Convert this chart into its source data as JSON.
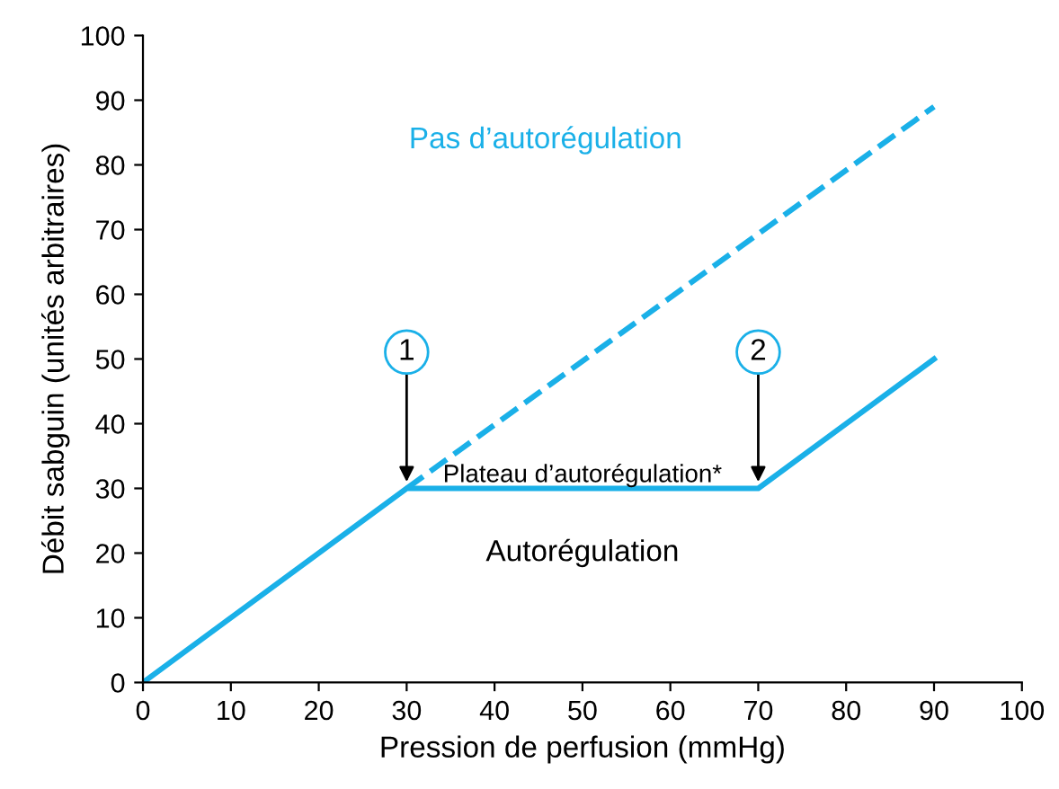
{
  "chart_data": {
    "type": "line",
    "xlabel": "Pression de perfusion (mmHg)",
    "ylabel": "Débit sabguin (unités arbitraires)",
    "xlim": [
      0,
      100
    ],
    "ylim": [
      0,
      100
    ],
    "xticks": [
      0,
      10,
      20,
      30,
      40,
      50,
      60,
      70,
      80,
      90,
      100
    ],
    "yticks": [
      0,
      10,
      20,
      30,
      40,
      50,
      60,
      70,
      80,
      90,
      100
    ],
    "grid": false,
    "legend": false,
    "series": [
      {
        "x": [
          0,
          30,
          70,
          90
        ],
        "values": [
          0,
          30,
          30,
          50
        ],
        "color": "#1ab0e8",
        "line_style": "solid"
      },
      {
        "name": "Pas d’autorégulation",
        "x": [
          30,
          90
        ],
        "values": [
          30,
          89
        ],
        "color": "#1ab0e8",
        "line_style": "dashed"
      }
    ],
    "annotations": [
      {
        "text": "1",
        "x": 30,
        "y": 30
      },
      {
        "text": "2",
        "x": 70,
        "y": 30
      },
      "Plateau d’autorégulation*",
      "Autorégulation"
    ]
  }
}
